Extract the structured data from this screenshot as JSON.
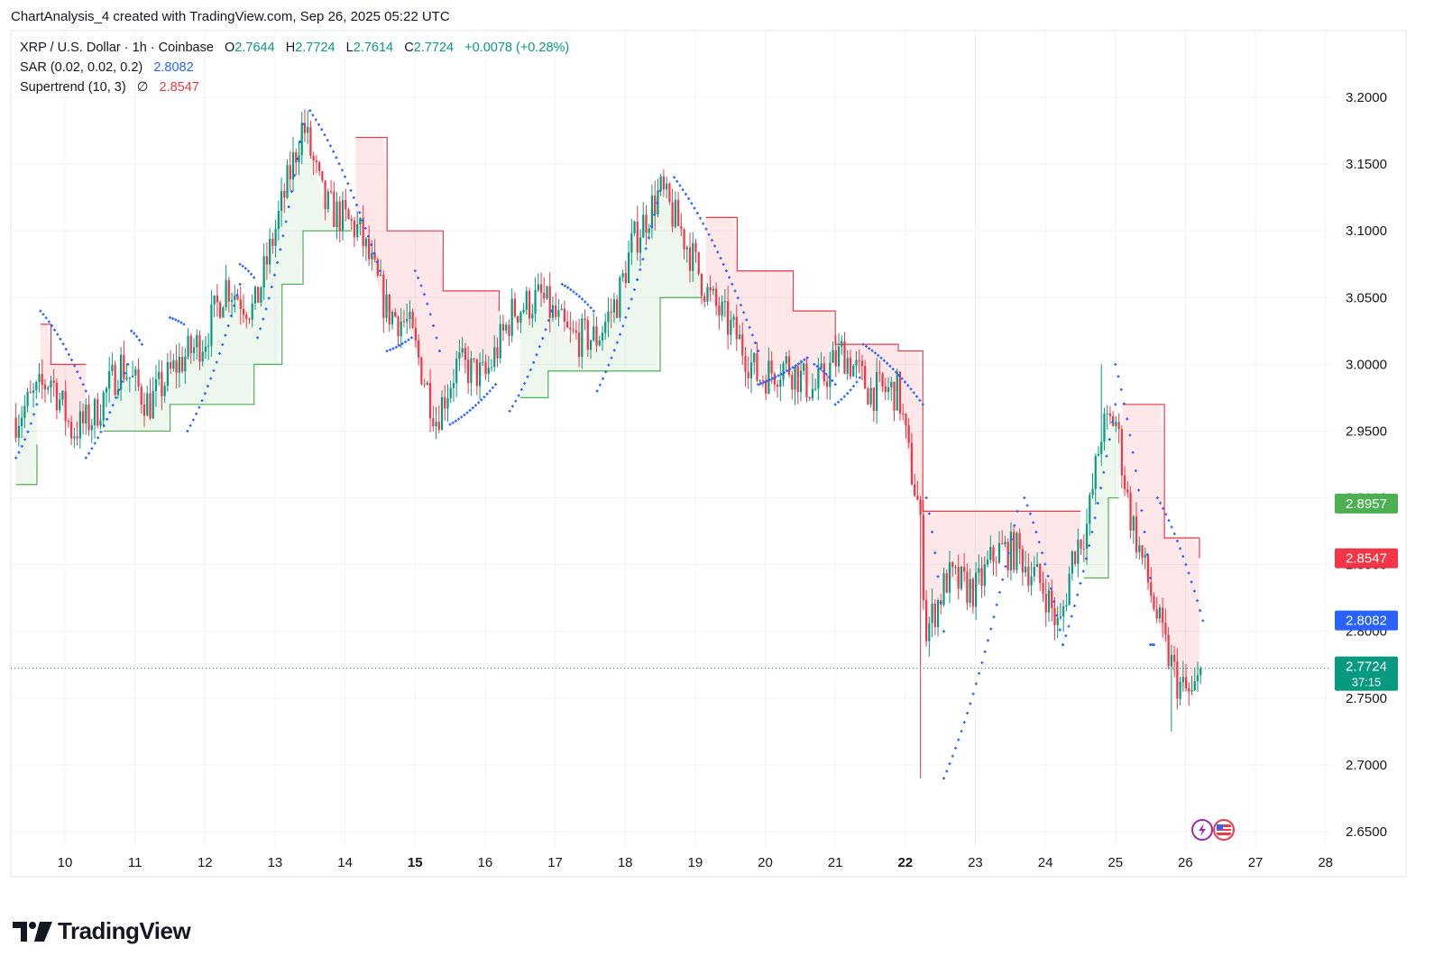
{
  "caption": "ChartAnalysis_4 created with TradingView.com, Sep 26, 2025 05:22 UTC",
  "legend": {
    "symbol": "XRP / U.S. Dollar · 1h · Coinbase",
    "open_label": "O",
    "open": "2.7644",
    "high_label": "H",
    "high": "2.7724",
    "low_label": "L",
    "low": "2.7614",
    "close_label": "C",
    "close": "2.7724",
    "change": "+0.0078 (+0.28%)",
    "sar_name": "SAR (0.02, 0.02, 0.2)",
    "sar_value": "2.8082",
    "st_name": "Supertrend (10, 3)",
    "st_icon": "∅",
    "st_value": "2.8547"
  },
  "price_tags": [
    {
      "value": "2.8957",
      "color": "#4caf50"
    },
    {
      "value": "2.8547",
      "color": "#f23645"
    },
    {
      "value": "2.8082",
      "color": "#2962ff"
    },
    {
      "value": "2.7724",
      "sub": "37:15",
      "color": "#089981"
    }
  ],
  "logo_text": "TradingView",
  "chart_data": {
    "type": "candlestick",
    "symbol": "XRP / U.S. Dollar",
    "interval": "1h",
    "exchange": "Coinbase",
    "y_ticks": [
      "3.2000",
      "3.1500",
      "3.1000",
      "3.0500",
      "3.0000",
      "2.9500",
      "2.9000",
      "2.8500",
      "2.8000",
      "2.7500",
      "2.7000",
      "2.6500"
    ],
    "ylim": [
      2.64,
      3.22
    ],
    "x_ticks": [
      "10",
      "11",
      "12",
      "13",
      "14",
      "15",
      "16",
      "17",
      "18",
      "19",
      "20",
      "21",
      "22",
      "23",
      "24",
      "25",
      "26",
      "27",
      "28"
    ],
    "x_bold_ticks": [
      "15",
      "22"
    ],
    "current_price": 2.7724,
    "close_path": [
      {
        "day": 9.3,
        "price": 2.96
      },
      {
        "day": 9.8,
        "price": 2.99
      },
      {
        "day": 10.1,
        "price": 2.95
      },
      {
        "day": 10.4,
        "price": 2.96
      },
      {
        "day": 10.8,
        "price": 3.0
      },
      {
        "day": 11.2,
        "price": 2.97
      },
      {
        "day": 11.6,
        "price": 3.0
      },
      {
        "day": 12.0,
        "price": 3.02
      },
      {
        "day": 12.3,
        "price": 3.06
      },
      {
        "day": 12.7,
        "price": 3.04
      },
      {
        "day": 13.0,
        "price": 3.1
      },
      {
        "day": 13.4,
        "price": 3.18
      },
      {
        "day": 13.7,
        "price": 3.12
      },
      {
        "day": 14.2,
        "price": 3.1
      },
      {
        "day": 14.6,
        "price": 3.04
      },
      {
        "day": 14.9,
        "price": 3.03
      },
      {
        "day": 15.3,
        "price": 2.96
      },
      {
        "day": 15.6,
        "price": 3.0
      },
      {
        "day": 16.0,
        "price": 2.99
      },
      {
        "day": 16.4,
        "price": 3.04
      },
      {
        "day": 16.8,
        "price": 3.05
      },
      {
        "day": 17.2,
        "price": 3.02
      },
      {
        "day": 17.6,
        "price": 3.02
      },
      {
        "day": 17.9,
        "price": 3.05
      },
      {
        "day": 18.1,
        "price": 3.09
      },
      {
        "day": 18.5,
        "price": 3.13
      },
      {
        "day": 18.8,
        "price": 3.1
      },
      {
        "day": 19.2,
        "price": 3.05
      },
      {
        "day": 19.6,
        "price": 3.02
      },
      {
        "day": 19.9,
        "price": 2.99
      },
      {
        "day": 20.3,
        "price": 3.0
      },
      {
        "day": 20.7,
        "price": 2.98
      },
      {
        "day": 21.1,
        "price": 3.01
      },
      {
        "day": 21.5,
        "price": 2.98
      },
      {
        "day": 21.9,
        "price": 2.98
      },
      {
        "day": 22.05,
        "price": 2.93
      },
      {
        "day": 22.2,
        "price": 2.89
      },
      {
        "day": 22.3,
        "price": 2.8
      },
      {
        "day": 22.6,
        "price": 2.84
      },
      {
        "day": 23.0,
        "price": 2.83
      },
      {
        "day": 23.3,
        "price": 2.86
      },
      {
        "day": 23.6,
        "price": 2.86
      },
      {
        "day": 24.0,
        "price": 2.83
      },
      {
        "day": 24.2,
        "price": 2.8
      },
      {
        "day": 24.4,
        "price": 2.86
      },
      {
        "day": 24.6,
        "price": 2.88
      },
      {
        "day": 24.8,
        "price": 2.95
      },
      {
        "day": 25.0,
        "price": 2.96
      },
      {
        "day": 25.2,
        "price": 2.89
      },
      {
        "day": 25.5,
        "price": 2.83
      },
      {
        "day": 25.7,
        "price": 2.79
      },
      {
        "day": 25.9,
        "price": 2.76
      },
      {
        "day": 26.1,
        "price": 2.75
      },
      {
        "day": 26.25,
        "price": 2.7724
      }
    ],
    "wick_extremes": [
      {
        "day": 13.45,
        "high": 3.19
      },
      {
        "day": 18.5,
        "high": 3.14
      },
      {
        "day": 22.22,
        "low": 2.69
      },
      {
        "day": 24.8,
        "high": 3.0
      },
      {
        "day": 25.8,
        "low": 2.725
      }
    ],
    "supertrend": [
      {
        "day": 9.3,
        "value": 2.91,
        "dir": "up"
      },
      {
        "day": 9.6,
        "value": 2.94,
        "dir": "up"
      },
      {
        "day": 9.65,
        "value": 3.03,
        "dir": "down"
      },
      {
        "day": 9.8,
        "value": 3.0,
        "dir": "down"
      },
      {
        "day": 10.3,
        "value": 3.0,
        "dir": "down"
      },
      {
        "day": 10.55,
        "value": 2.95,
        "dir": "up"
      },
      {
        "day": 11.5,
        "value": 2.97,
        "dir": "up"
      },
      {
        "day": 12.7,
        "value": 3.0,
        "dir": "up"
      },
      {
        "day": 13.1,
        "value": 3.06,
        "dir": "up"
      },
      {
        "day": 13.4,
        "value": 3.1,
        "dir": "up"
      },
      {
        "day": 14.1,
        "value": 3.1,
        "dir": "up"
      },
      {
        "day": 14.15,
        "value": 3.17,
        "dir": "down"
      },
      {
        "day": 14.6,
        "value": 3.1,
        "dir": "down"
      },
      {
        "day": 15.3,
        "value": 3.1,
        "dir": "down"
      },
      {
        "day": 15.4,
        "value": 3.055,
        "dir": "down"
      },
      {
        "day": 16.2,
        "value": 3.04,
        "dir": "down"
      },
      {
        "day": 16.5,
        "value": 2.975,
        "dir": "up"
      },
      {
        "day": 16.9,
        "value": 2.995,
        "dir": "up"
      },
      {
        "day": 17.8,
        "value": 2.995,
        "dir": "up"
      },
      {
        "day": 18.5,
        "value": 3.05,
        "dir": "up"
      },
      {
        "day": 19.1,
        "value": 3.05,
        "dir": "up"
      },
      {
        "day": 19.15,
        "value": 3.11,
        "dir": "down"
      },
      {
        "day": 19.6,
        "value": 3.07,
        "dir": "down"
      },
      {
        "day": 20.4,
        "value": 3.04,
        "dir": "down"
      },
      {
        "day": 21.0,
        "value": 3.015,
        "dir": "down"
      },
      {
        "day": 21.9,
        "value": 3.01,
        "dir": "down"
      },
      {
        "day": 22.25,
        "value": 2.89,
        "dir": "down"
      },
      {
        "day": 24.5,
        "value": 2.89,
        "dir": "down"
      },
      {
        "day": 24.55,
        "value": 2.84,
        "dir": "up"
      },
      {
        "day": 24.9,
        "value": 2.9,
        "dir": "up"
      },
      {
        "day": 25.05,
        "value": 2.9,
        "dir": "up"
      },
      {
        "day": 25.1,
        "value": 2.97,
        "dir": "down"
      },
      {
        "day": 25.7,
        "value": 2.87,
        "dir": "down"
      },
      {
        "day": 26.2,
        "value": 2.855,
        "dir": "down"
      }
    ],
    "sar": [
      {
        "from_day": 9.3,
        "from": 2.93,
        "to_day": 9.6,
        "to": 2.97
      },
      {
        "from_day": 9.65,
        "from": 3.04,
        "to_day": 10.3,
        "to": 2.98
      },
      {
        "from_day": 10.3,
        "from": 2.93,
        "to_day": 10.9,
        "to": 3.0
      },
      {
        "from_day": 10.95,
        "from": 3.025,
        "to_day": 11.1,
        "to": 3.015
      },
      {
        "from_day": 11.5,
        "from": 3.035,
        "to_day": 11.7,
        "to": 3.03
      },
      {
        "from_day": 11.75,
        "from": 2.95,
        "to_day": 12.5,
        "to": 3.06
      },
      {
        "from_day": 12.5,
        "from": 3.075,
        "to_day": 12.7,
        "to": 3.065
      },
      {
        "from_day": 12.75,
        "from": 3.02,
        "to_day": 13.4,
        "to": 3.18
      },
      {
        "from_day": 13.5,
        "from": 3.19,
        "to_day": 14.5,
        "to": 3.07
      },
      {
        "from_day": 14.6,
        "from": 3.01,
        "to_day": 14.95,
        "to": 3.02
      },
      {
        "from_day": 15.0,
        "from": 3.07,
        "to_day": 15.35,
        "to": 3.01
      },
      {
        "from_day": 15.5,
        "from": 2.955,
        "to_day": 16.15,
        "to": 2.985
      },
      {
        "from_day": 16.35,
        "from": 2.965,
        "to_day": 16.95,
        "to": 3.04
      },
      {
        "from_day": 17.1,
        "from": 3.06,
        "to_day": 17.55,
        "to": 3.04
      },
      {
        "from_day": 17.6,
        "from": 2.98,
        "to_day": 18.5,
        "to": 3.13
      },
      {
        "from_day": 18.7,
        "from": 3.14,
        "to_day": 19.9,
        "to": 3.01
      },
      {
        "from_day": 19.9,
        "from": 2.985,
        "to_day": 20.6,
        "to": 3.005
      },
      {
        "from_day": 20.7,
        "from": 3.0,
        "to_day": 21.0,
        "to": 2.985
      },
      {
        "from_day": 21.0,
        "from": 2.97,
        "to_day": 21.35,
        "to": 2.99
      },
      {
        "from_day": 21.4,
        "from": 3.015,
        "to_day": 22.25,
        "to": 2.97
      },
      {
        "from_day": 22.3,
        "from": 2.9,
        "to_day": 22.55,
        "to": 2.8
      },
      {
        "from_day": 22.55,
        "from": 2.69,
        "to_day": 23.6,
        "to": 2.89
      },
      {
        "from_day": 23.7,
        "from": 2.9,
        "to_day": 24.25,
        "to": 2.79
      },
      {
        "from_day": 24.25,
        "from": 2.79,
        "to_day": 25.0,
        "to": 2.97
      },
      {
        "from_day": 25.0,
        "from": 3.0,
        "to_day": 25.5,
        "to": 2.84
      },
      {
        "from_day": 25.5,
        "from": 2.79,
        "to_day": 25.55,
        "to": 2.79
      },
      {
        "from_day": 25.6,
        "from": 2.9,
        "to_day": 26.25,
        "to": 2.808
      }
    ]
  }
}
